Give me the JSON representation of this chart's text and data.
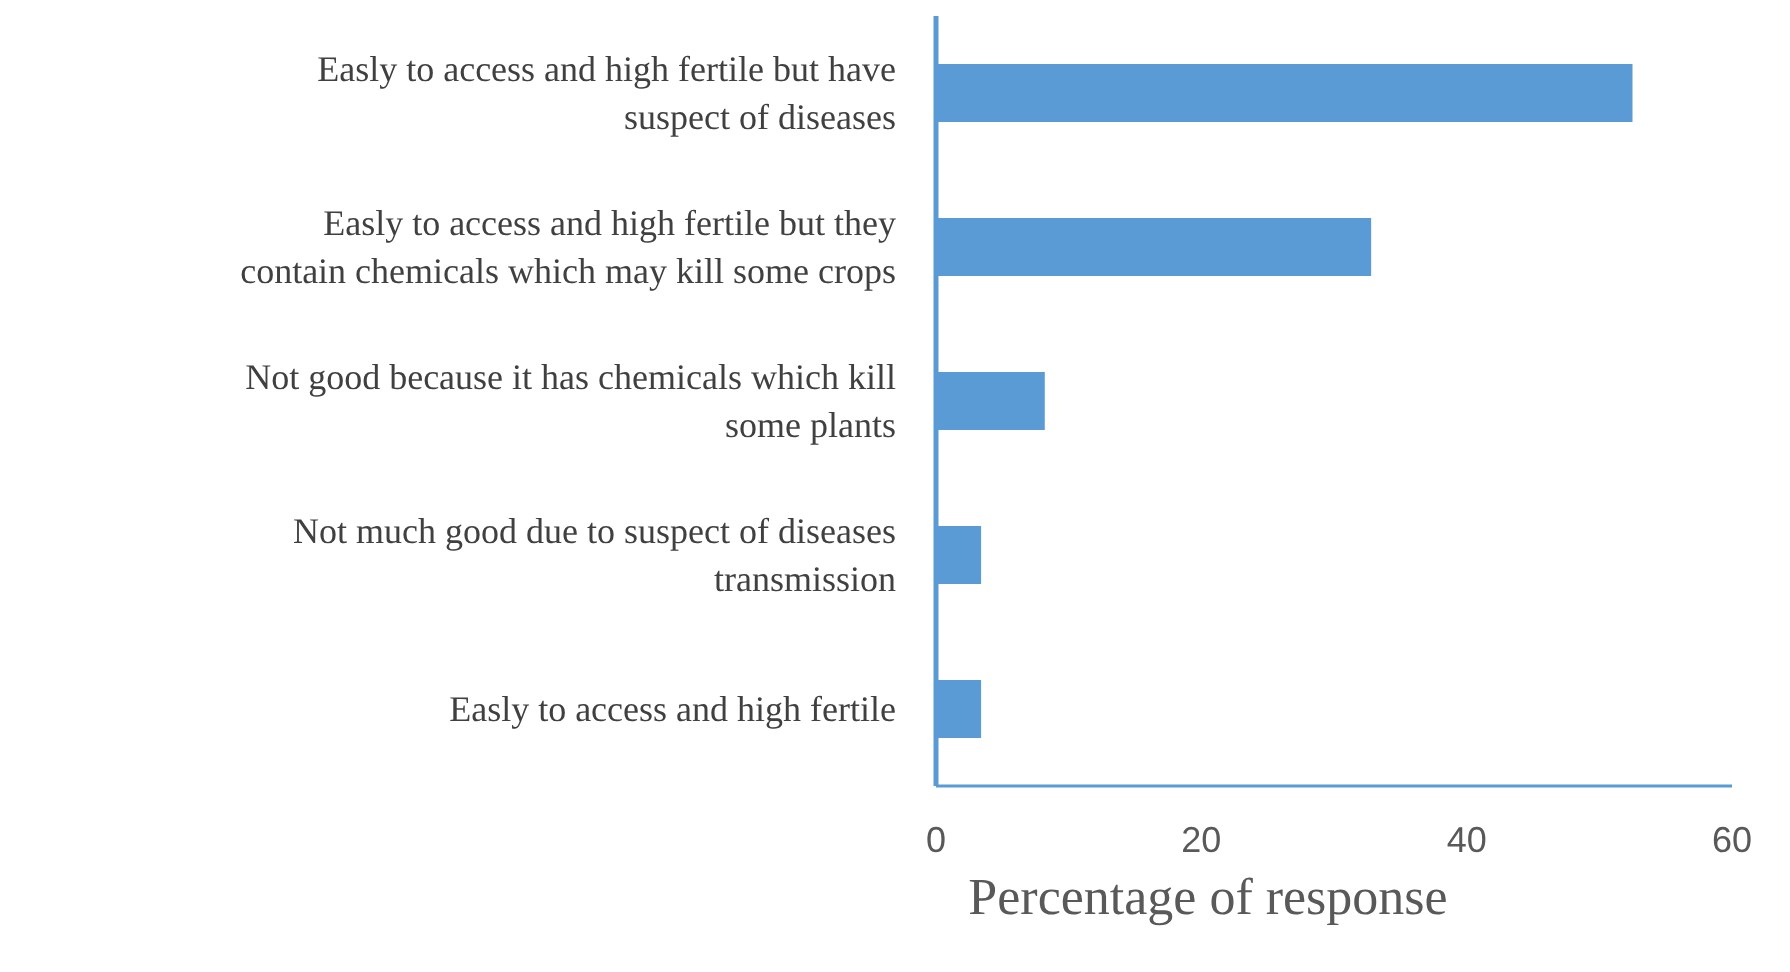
{
  "chart_data": {
    "type": "bar",
    "orientation": "horizontal",
    "categories": [
      "Easly to access and high fertile but have suspect of diseases",
      "Easly to access and high fertile but they contain chemicals which may kill some crops",
      "Not good because it has chemicals which kill some plants",
      "Not much good due to suspect of diseases transmission",
      "Easly to access and high fertile"
    ],
    "values": [
      52.5,
      32.8,
      8.2,
      3.4,
      3.4
    ],
    "color": "#5b9bd5",
    "xlabel": "Percentage of response",
    "xlim": [
      0,
      60
    ],
    "xticks": [
      0,
      20,
      40,
      60
    ],
    "grid": false,
    "legend": false
  }
}
